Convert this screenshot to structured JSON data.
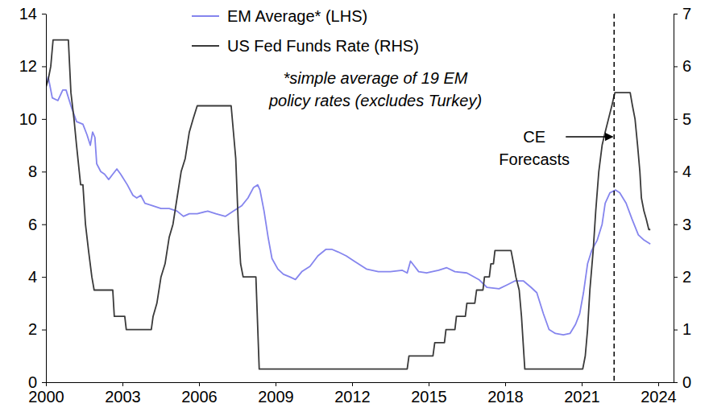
{
  "chart_data": {
    "type": "line",
    "legend": "top",
    "grid": false,
    "note": [
      "*simple average of 19 EM",
      "policy rates (excludes Turkey)"
    ],
    "annotations": [
      {
        "text": [
          "CE",
          "Forecasts"
        ],
        "x": 2022.27
      }
    ],
    "xlim": [
      2000,
      2024.6
    ],
    "xticks": [
      2000,
      2003,
      2006,
      2009,
      2012,
      2015,
      2018,
      2021,
      2024
    ],
    "ylim": [
      0,
      14
    ],
    "yticks": [
      0,
      2,
      4,
      6,
      8,
      10,
      12,
      14
    ],
    "y2lim": [
      0,
      7
    ],
    "y2ticks": [
      0,
      1,
      2,
      3,
      4,
      5,
      6,
      7
    ],
    "series": [
      {
        "name": "EM Average* (LHS)",
        "color": "#8585ee",
        "axis": "y",
        "x": [
          2000.0,
          2000.09,
          2000.25,
          2000.47,
          2000.66,
          2000.79,
          2000.98,
          2001.2,
          2001.45,
          2001.61,
          2001.74,
          2001.83,
          2001.92,
          2001.99,
          2002.15,
          2002.3,
          2002.46,
          2002.62,
          2002.78,
          2002.93,
          2003.19,
          2003.41,
          2003.56,
          2003.72,
          2003.88,
          2004.2,
          2004.51,
          2004.83,
          2005.14,
          2005.39,
          2005.62,
          2005.93,
          2006.34,
          2006.66,
          2007.03,
          2007.35,
          2007.67,
          2007.92,
          2008.14,
          2008.3,
          2008.39,
          2008.55,
          2008.71,
          2008.86,
          2009.09,
          2009.31,
          2009.56,
          2009.78,
          2010.03,
          2010.35,
          2010.66,
          2010.98,
          2011.2,
          2011.45,
          2011.77,
          2012.08,
          2012.56,
          2013.03,
          2013.5,
          2013.97,
          2014.16,
          2014.29,
          2014.45,
          2014.61,
          2014.92,
          2015.39,
          2015.71,
          2016.03,
          2016.5,
          2016.97,
          2017.29,
          2017.76,
          2018.08,
          2018.39,
          2018.71,
          2019.02,
          2019.24,
          2019.5,
          2019.72,
          2019.97,
          2020.28,
          2020.54,
          2020.76,
          2020.92,
          2021.07,
          2021.23,
          2021.39,
          2021.61,
          2021.8,
          2021.92,
          2022.11,
          2022.33,
          2022.49,
          2022.74,
          2022.97,
          2023.22,
          2023.44,
          2023.69
        ],
        "values": [
          11.3,
          11.6,
          10.8,
          10.7,
          11.1,
          11.1,
          10.5,
          9.9,
          9.8,
          9.4,
          9.0,
          9.5,
          9.3,
          8.3,
          8.0,
          7.9,
          7.7,
          7.9,
          8.1,
          7.9,
          7.5,
          7.1,
          7.0,
          7.1,
          6.8,
          6.7,
          6.6,
          6.6,
          6.5,
          6.3,
          6.4,
          6.4,
          6.5,
          6.4,
          6.3,
          6.5,
          6.7,
          7.0,
          7.4,
          7.5,
          7.3,
          6.5,
          5.5,
          4.7,
          4.3,
          4.1,
          4.0,
          3.9,
          4.2,
          4.4,
          4.8,
          5.05,
          5.05,
          4.95,
          4.8,
          4.6,
          4.3,
          4.2,
          4.2,
          4.25,
          4.15,
          4.6,
          4.4,
          4.2,
          4.15,
          4.25,
          4.35,
          4.2,
          4.15,
          3.9,
          3.6,
          3.55,
          3.7,
          3.85,
          3.85,
          3.6,
          3.4,
          2.6,
          2.0,
          1.85,
          1.8,
          1.85,
          2.2,
          2.6,
          3.4,
          4.5,
          5.0,
          5.4,
          6.0,
          6.8,
          7.2,
          7.3,
          7.2,
          6.8,
          6.2,
          5.6,
          5.4,
          5.25
        ]
      },
      {
        "name": "US Fed Funds Rate (RHS)",
        "color": "#3a3a3a",
        "axis": "y2",
        "x": [
          2000.0,
          2000.09,
          2000.19,
          2000.28,
          2000.88,
          2000.98,
          2001.1,
          2001.2,
          2001.36,
          2001.45,
          2001.55,
          2001.67,
          2001.8,
          2001.89,
          2002.62,
          2002.68,
          2003.09,
          2003.15,
          2004.13,
          2004.2,
          2004.35,
          2004.51,
          2004.67,
          2004.83,
          2004.98,
          2005.14,
          2005.3,
          2005.46,
          2005.62,
          2005.77,
          2005.93,
          2007.26,
          2007.35,
          2007.44,
          2007.54,
          2007.63,
          2007.73,
          2008.23,
          2008.36,
          2014.16,
          2014.23,
          2015.17,
          2015.24,
          2015.62,
          2015.68,
          2016.03,
          2016.09,
          2016.44,
          2016.5,
          2016.81,
          2016.88,
          2017.13,
          2017.19,
          2017.38,
          2017.44,
          2017.54,
          2017.6,
          2018.23,
          2018.33,
          2018.42,
          2018.55,
          2018.64,
          2018.77,
          2021.04,
          2021.14,
          2021.23,
          2021.32,
          2021.45,
          2021.55,
          2021.67,
          2021.8,
          2021.92,
          2022.05,
          2022.18,
          2022.3,
          2022.9,
          2022.99,
          2023.09,
          2023.19,
          2023.28,
          2023.34,
          2023.44,
          2023.53,
          2023.63,
          2023.69
        ],
        "values": [
          5.6,
          5.75,
          6.0,
          6.5,
          6.5,
          5.5,
          5.0,
          4.5,
          3.75,
          3.75,
          3.0,
          2.5,
          2.0,
          1.75,
          1.75,
          1.25,
          1.25,
          1.0,
          1.0,
          1.25,
          1.5,
          2.0,
          2.25,
          2.75,
          3.0,
          3.5,
          4.0,
          4.25,
          4.75,
          5.0,
          5.25,
          5.25,
          4.75,
          4.25,
          3.0,
          2.25,
          2.0,
          2.0,
          0.25,
          0.25,
          0.5,
          0.5,
          0.75,
          0.75,
          1.0,
          1.0,
          1.25,
          1.25,
          1.5,
          1.5,
          1.75,
          1.75,
          2.0,
          2.0,
          2.25,
          2.25,
          2.5,
          2.5,
          2.25,
          2.0,
          1.75,
          1.25,
          0.25,
          0.25,
          0.5,
          1.0,
          1.75,
          2.5,
          3.25,
          4.0,
          4.5,
          4.75,
          5.0,
          5.25,
          5.5,
          5.5,
          5.25,
          5.0,
          4.5,
          4.0,
          3.5,
          3.25,
          3.1,
          2.9,
          2.9
        ]
      }
    ]
  }
}
